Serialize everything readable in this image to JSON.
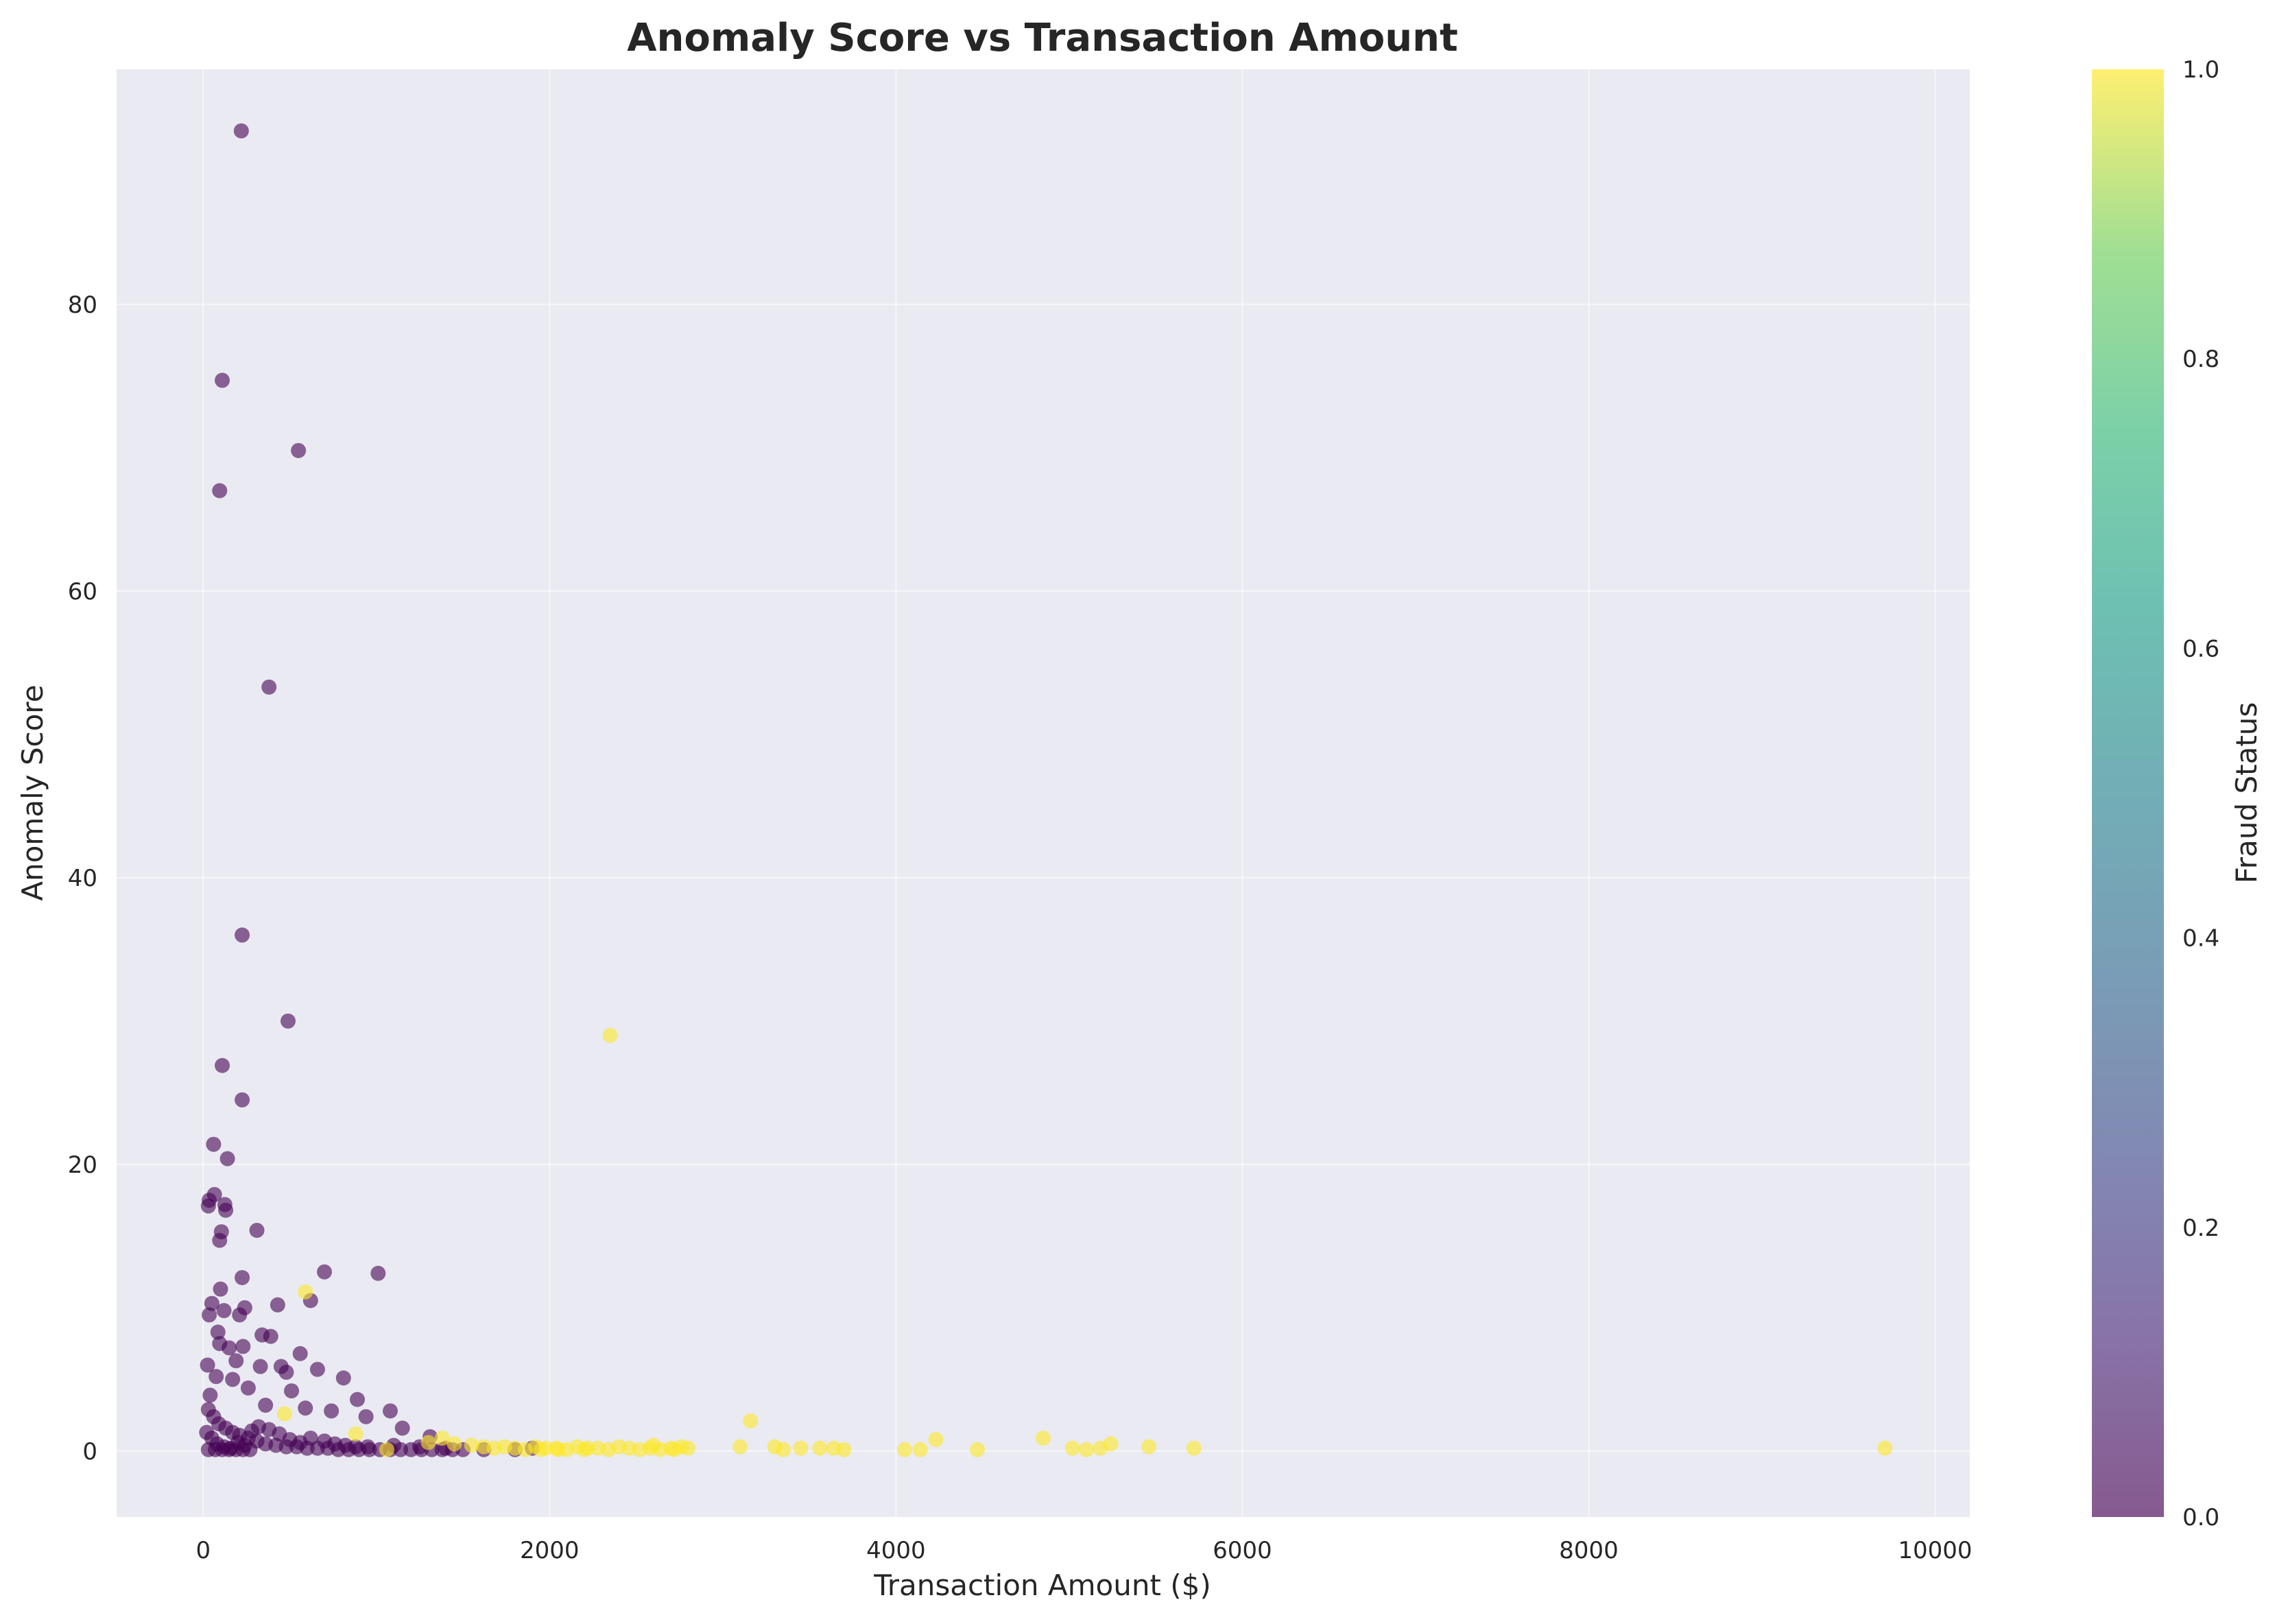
{
  "chart_data": {
    "type": "scatter",
    "title": "Anomaly Score vs Transaction Amount",
    "xlabel": "Transaction Amount ($)",
    "ylabel": "Anomaly Score",
    "xlim": [
      -500,
      10200
    ],
    "ylim": [
      -4.6,
      96.4
    ],
    "xticks": [
      0,
      2000,
      4000,
      6000,
      8000,
      10000
    ],
    "yticks": [
      0,
      20,
      40,
      60,
      80
    ],
    "grid": true,
    "colorbar": {
      "label": "Fraud Status",
      "range": [
        0.0,
        1.0
      ],
      "ticks": [
        "0.0",
        "0.2",
        "0.4",
        "0.6",
        "0.8",
        "1.0"
      ],
      "colormap": "viridis"
    },
    "colors": {
      "background": "#eaeaf2",
      "not_fraud": "#440154",
      "fraud": "#fde725",
      "grid": "#ffffff"
    },
    "series": [
      {
        "fraud_status": 0,
        "points": [
          [
            220,
            92.1
          ],
          [
            110,
            74.7
          ],
          [
            550,
            69.8
          ],
          [
            95,
            67.0
          ],
          [
            380,
            53.3
          ],
          [
            225,
            36.0
          ],
          [
            490,
            30.0
          ],
          [
            110,
            26.9
          ],
          [
            225,
            24.5
          ],
          [
            60,
            21.4
          ],
          [
            140,
            20.4
          ],
          [
            35,
            17.5
          ],
          [
            30,
            17.1
          ],
          [
            65,
            17.9
          ],
          [
            125,
            17.2
          ],
          [
            130,
            16.8
          ],
          [
            105,
            15.3
          ],
          [
            95,
            14.7
          ],
          [
            310,
            15.4
          ],
          [
            100,
            11.3
          ],
          [
            225,
            12.1
          ],
          [
            700,
            12.5
          ],
          [
            1010,
            12.4
          ],
          [
            620,
            10.5
          ],
          [
            50,
            10.3
          ],
          [
            120,
            9.8
          ],
          [
            35,
            9.5
          ],
          [
            210,
            9.5
          ],
          [
            430,
            10.2
          ],
          [
            240,
            10.0
          ],
          [
            85,
            8.3
          ],
          [
            340,
            8.1
          ],
          [
            390,
            8.0
          ],
          [
            95,
            7.5
          ],
          [
            150,
            7.2
          ],
          [
            230,
            7.3
          ],
          [
            560,
            6.8
          ],
          [
            190,
            6.3
          ],
          [
            25,
            6.0
          ],
          [
            330,
            5.9
          ],
          [
            450,
            5.9
          ],
          [
            660,
            5.7
          ],
          [
            810,
            5.1
          ],
          [
            480,
            5.5
          ],
          [
            170,
            5.0
          ],
          [
            75,
            5.2
          ],
          [
            260,
            4.4
          ],
          [
            510,
            4.2
          ],
          [
            890,
            3.6
          ],
          [
            1080,
            2.8
          ],
          [
            360,
            3.2
          ],
          [
            590,
            3.0
          ],
          [
            740,
            2.8
          ],
          [
            940,
            2.4
          ],
          [
            1150,
            1.6
          ],
          [
            1310,
            1.0
          ],
          [
            40,
            3.9
          ],
          [
            30,
            2.9
          ],
          [
            60,
            2.4
          ],
          [
            90,
            1.9
          ],
          [
            130,
            1.6
          ],
          [
            170,
            1.3
          ],
          [
            210,
            1.1
          ],
          [
            260,
            0.9
          ],
          [
            310,
            0.7
          ],
          [
            360,
            0.5
          ],
          [
            420,
            0.4
          ],
          [
            480,
            0.3
          ],
          [
            540,
            0.3
          ],
          [
            600,
            0.2
          ],
          [
            660,
            0.2
          ],
          [
            720,
            0.2
          ],
          [
            780,
            0.1
          ],
          [
            840,
            0.1
          ],
          [
            900,
            0.1
          ],
          [
            960,
            0.1
          ],
          [
            1020,
            0.1
          ],
          [
            1080,
            0.1
          ],
          [
            1140,
            0.1
          ],
          [
            1200,
            0.1
          ],
          [
            1260,
            0.1
          ],
          [
            1320,
            0.1
          ],
          [
            1380,
            0.1
          ],
          [
            1440,
            0.1
          ],
          [
            1500,
            0.1
          ],
          [
            20,
            1.3
          ],
          [
            50,
            0.9
          ],
          [
            80,
            0.5
          ],
          [
            120,
            0.3
          ],
          [
            160,
            0.2
          ],
          [
            200,
            0.6
          ],
          [
            240,
            0.4
          ],
          [
            280,
            1.4
          ],
          [
            320,
            1.7
          ],
          [
            380,
            1.5
          ],
          [
            440,
            1.2
          ],
          [
            500,
            0.8
          ],
          [
            560,
            0.6
          ],
          [
            620,
            0.9
          ],
          [
            700,
            0.7
          ],
          [
            760,
            0.5
          ],
          [
            820,
            0.4
          ],
          [
            880,
            0.3
          ],
          [
            950,
            0.3
          ],
          [
            1100,
            0.4
          ],
          [
            1250,
            0.3
          ],
          [
            1400,
            0.2
          ],
          [
            30,
            0.1
          ],
          [
            70,
            0.1
          ],
          [
            110,
            0.1
          ],
          [
            150,
            0.1
          ],
          [
            190,
            0.1
          ],
          [
            230,
            0.1
          ],
          [
            270,
            0.1
          ],
          [
            1620,
            0.1
          ],
          [
            1800,
            0.1
          ],
          [
            1900,
            0.2
          ]
        ]
      },
      {
        "fraud_status": 1,
        "points": [
          [
            2350,
            29.0
          ],
          [
            590,
            11.1
          ],
          [
            470,
            2.6
          ],
          [
            3160,
            2.1
          ],
          [
            4230,
            0.8
          ],
          [
            4850,
            0.9
          ],
          [
            5240,
            0.5
          ],
          [
            5460,
            0.3
          ],
          [
            5720,
            0.2
          ],
          [
            9710,
            0.2
          ],
          [
            3100,
            0.3
          ],
          [
            3300,
            0.3
          ],
          [
            3350,
            0.1
          ],
          [
            3450,
            0.2
          ],
          [
            3560,
            0.2
          ],
          [
            3640,
            0.2
          ],
          [
            3700,
            0.1
          ],
          [
            4050,
            0.1
          ],
          [
            4140,
            0.1
          ],
          [
            4470,
            0.1
          ],
          [
            5020,
            0.2
          ],
          [
            5100,
            0.1
          ],
          [
            5180,
            0.2
          ],
          [
            1620,
            0.3
          ],
          [
            1680,
            0.2
          ],
          [
            1740,
            0.3
          ],
          [
            1800,
            0.2
          ],
          [
            1860,
            0.1
          ],
          [
            1920,
            0.3
          ],
          [
            1980,
            0.2
          ],
          [
            2040,
            0.2
          ],
          [
            2100,
            0.1
          ],
          [
            2160,
            0.3
          ],
          [
            2220,
            0.2
          ],
          [
            2280,
            0.2
          ],
          [
            2340,
            0.1
          ],
          [
            2400,
            0.3
          ],
          [
            2460,
            0.2
          ],
          [
            2520,
            0.1
          ],
          [
            2580,
            0.2
          ],
          [
            2640,
            0.1
          ],
          [
            2700,
            0.2
          ],
          [
            2760,
            0.3
          ],
          [
            2800,
            0.2
          ],
          [
            1550,
            0.4
          ],
          [
            1450,
            0.5
          ],
          [
            1380,
            0.9
          ],
          [
            1300,
            0.6
          ],
          [
            1060,
            0.1
          ],
          [
            880,
            1.2
          ],
          [
            2200,
            0.1
          ],
          [
            2050,
            0.1
          ],
          [
            1950,
            0.1
          ],
          [
            2600,
            0.4
          ],
          [
            2720,
            0.1
          ]
        ]
      }
    ]
  }
}
